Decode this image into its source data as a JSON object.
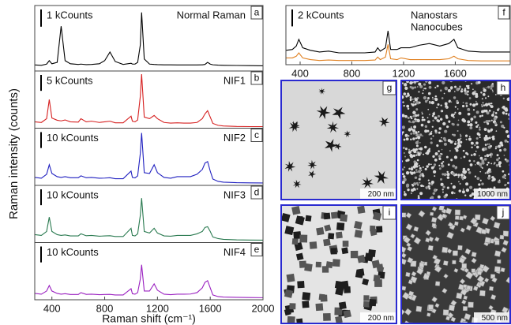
{
  "axis_labels": {
    "y": "Raman intensity (counts)"
  },
  "chart_data": [
    {
      "type": "line",
      "label": "a",
      "xlim": [
        270,
        2000
      ],
      "ylim": [
        0,
        3800
      ],
      "scale_bar": {
        "value": 1000,
        "label": "1 kCounts"
      },
      "x": [
        270,
        320,
        360,
        380,
        400,
        440,
        470,
        500,
        540,
        600,
        620,
        660,
        700,
        760,
        800,
        840,
        880,
        940,
        1000,
        1010,
        1030,
        1050,
        1070,
        1080,
        1100,
        1140,
        1175,
        1200,
        1250,
        1300,
        1350,
        1400,
        1450,
        1500,
        1540,
        1560,
        1580,
        1600,
        1620,
        1660,
        1700,
        1800,
        1900,
        2000
      ],
      "series": [
        {
          "name": "Normal Raman",
          "color": "#000000",
          "values": [
            350,
            330,
            400,
            600,
            420,
            500,
            2600,
            600,
            420,
            380,
            400,
            370,
            380,
            420,
            600,
            1100,
            550,
            380,
            450,
            400,
            400,
            500,
            1500,
            3400,
            700,
            400,
            380,
            370,
            360,
            360,
            350,
            350,
            350,
            350,
            360,
            380,
            500,
            400,
            360,
            340,
            330,
            320,
            310,
            300
          ]
        }
      ]
    },
    {
      "type": "line",
      "label": "b",
      "xlim": [
        270,
        2000
      ],
      "ylim": [
        0,
        18000
      ],
      "scale_bar": {
        "value": 5000,
        "label": "5 kCounts"
      },
      "x": [
        270,
        320,
        360,
        380,
        400,
        440,
        470,
        500,
        540,
        600,
        620,
        660,
        700,
        760,
        800,
        840,
        880,
        940,
        1000,
        1010,
        1030,
        1050,
        1070,
        1080,
        1100,
        1140,
        1175,
        1200,
        1250,
        1300,
        1350,
        1400,
        1450,
        1500,
        1540,
        1560,
        1580,
        1600,
        1620,
        1660,
        1700,
        1800,
        1900,
        2000
      ],
      "series": [
        {
          "name": "NIF1",
          "color": "#d62020",
          "values": [
            2000,
            1800,
            3000,
            9000,
            3200,
            2500,
            2300,
            2600,
            2000,
            1900,
            3000,
            2000,
            2200,
            1800,
            2000,
            2200,
            1700,
            1700,
            3800,
            2200,
            2000,
            2600,
            10000,
            17000,
            3500,
            3000,
            4000,
            3000,
            1800,
            1600,
            1700,
            1600,
            1600,
            1800,
            3000,
            4500,
            5500,
            3500,
            1500,
            900,
            700,
            550,
            500,
            500
          ]
        }
      ]
    },
    {
      "type": "line",
      "label": "c",
      "xlim": [
        270,
        2000
      ],
      "ylim": [
        0,
        36000
      ],
      "scale_bar": {
        "value": 10000,
        "label": "10 kCounts"
      },
      "x": [
        270,
        320,
        360,
        380,
        400,
        440,
        470,
        500,
        540,
        600,
        620,
        660,
        700,
        760,
        800,
        840,
        880,
        940,
        1000,
        1010,
        1030,
        1050,
        1070,
        1080,
        1100,
        1140,
        1175,
        1200,
        1250,
        1300,
        1350,
        1400,
        1450,
        1500,
        1540,
        1560,
        1580,
        1600,
        1620,
        1660,
        1700,
        1800,
        1900,
        2000
      ],
      "series": [
        {
          "name": "NIF2",
          "color": "#2020c0",
          "values": [
            5000,
            4500,
            7000,
            13000,
            7500,
            5500,
            5000,
            5500,
            4800,
            4800,
            6000,
            4800,
            5000,
            4500,
            4600,
            4800,
            4200,
            4200,
            9000,
            5000,
            4700,
            6000,
            20000,
            33000,
            8000,
            7500,
            13000,
            8000,
            5000,
            4500,
            5500,
            5500,
            5500,
            7000,
            10000,
            14000,
            15000,
            9000,
            4000,
            2500,
            2000,
            1700,
            1600,
            1500
          ]
        }
      ]
    },
    {
      "type": "line",
      "label": "d",
      "xlim": [
        270,
        2000
      ],
      "ylim": [
        0,
        36000
      ],
      "scale_bar": {
        "value": 10000,
        "label": "10 kCounts"
      },
      "x": [
        270,
        320,
        360,
        380,
        400,
        440,
        470,
        500,
        540,
        600,
        620,
        660,
        700,
        760,
        800,
        840,
        880,
        940,
        1000,
        1010,
        1030,
        1050,
        1070,
        1080,
        1100,
        1140,
        1175,
        1200,
        1250,
        1300,
        1350,
        1400,
        1450,
        1500,
        1540,
        1560,
        1580,
        1600,
        1620,
        1660,
        1700,
        1800,
        1900,
        2000
      ],
      "series": [
        {
          "name": "NIF3",
          "color": "#2a7a50",
          "values": [
            5000,
            4500,
            7000,
            16000,
            7000,
            5000,
            4500,
            4800,
            4200,
            4200,
            5500,
            4300,
            4500,
            4000,
            4200,
            4300,
            3800,
            3800,
            9000,
            4500,
            4200,
            5500,
            17000,
            28000,
            7000,
            6000,
            9000,
            6000,
            4200,
            4000,
            4500,
            4500,
            4500,
            5500,
            7000,
            9500,
            10000,
            7000,
            3500,
            2500,
            2000,
            1700,
            1600,
            1500
          ]
        }
      ]
    },
    {
      "type": "line",
      "label": "e",
      "xlim": [
        270,
        2000
      ],
      "ylim": [
        0,
        36000
      ],
      "scale_bar": {
        "value": 10000,
        "label": "10 kCounts"
      },
      "xticks": [
        400,
        800,
        1200,
        1600,
        2000
      ],
      "xlabel": "Raman shift (cm⁻¹)",
      "x": [
        270,
        320,
        360,
        380,
        400,
        440,
        470,
        500,
        540,
        600,
        620,
        660,
        700,
        760,
        800,
        840,
        880,
        940,
        1000,
        1010,
        1030,
        1050,
        1070,
        1080,
        1100,
        1140,
        1175,
        1200,
        1250,
        1300,
        1350,
        1400,
        1450,
        1500,
        1540,
        1560,
        1580,
        1600,
        1620,
        1660,
        1700,
        1800,
        1900,
        2000
      ],
      "series": [
        {
          "name": "NIF4",
          "color": "#9a20c0",
          "values": [
            4000,
            3500,
            5500,
            9000,
            5500,
            4000,
            3500,
            3800,
            3300,
            3300,
            4500,
            3400,
            3500,
            3200,
            3300,
            3400,
            3000,
            3000,
            7000,
            3800,
            3500,
            4500,
            13000,
            22000,
            5500,
            5500,
            10000,
            6000,
            3500,
            3200,
            3500,
            3500,
            3600,
            4500,
            7500,
            11000,
            12000,
            7500,
            3000,
            2000,
            1700,
            1500,
            1400,
            1300
          ]
        }
      ]
    },
    {
      "type": "line",
      "label": "f",
      "xlim": [
        290,
        2025
      ],
      "ylim": [
        0,
        7000
      ],
      "scale_bar": {
        "value": 2000,
        "label": "2 kCounts"
      },
      "xticks": [
        400,
        800,
        1200,
        1600
      ],
      "x": [
        290,
        340,
        370,
        390,
        420,
        480,
        550,
        620,
        700,
        800,
        900,
        980,
        1000,
        1020,
        1060,
        1080,
        1100,
        1150,
        1180,
        1250,
        1320,
        1400,
        1480,
        1550,
        1590,
        1620,
        1700,
        1800,
        1900,
        2025
      ],
      "series": [
        {
          "name": "Nanostars",
          "color": "#000000",
          "values": [
            1700,
            1800,
            2200,
            3000,
            2000,
            1700,
            1500,
            1600,
            1400,
            1400,
            1400,
            1500,
            2000,
            1600,
            2000,
            4000,
            1800,
            1800,
            2000,
            2000,
            2300,
            2500,
            2200,
            2500,
            3000,
            2000,
            1600,
            1500,
            1500,
            1500
          ]
        },
        {
          "name": "Nanocubes",
          "color": "#e08020",
          "values": [
            800,
            800,
            1000,
            1400,
            800,
            600,
            500,
            550,
            500,
            500,
            500,
            550,
            900,
            600,
            900,
            2400,
            700,
            600,
            800,
            600,
            600,
            600,
            600,
            700,
            1000,
            700,
            500,
            450,
            450,
            450
          ]
        }
      ]
    }
  ],
  "micrographs": [
    {
      "label": "g",
      "scale": "200 nm"
    },
    {
      "label": "h",
      "scale": "1000 nm"
    },
    {
      "label": "i",
      "scale": "200 nm"
    },
    {
      "label": "j",
      "scale": "500 nm"
    }
  ]
}
